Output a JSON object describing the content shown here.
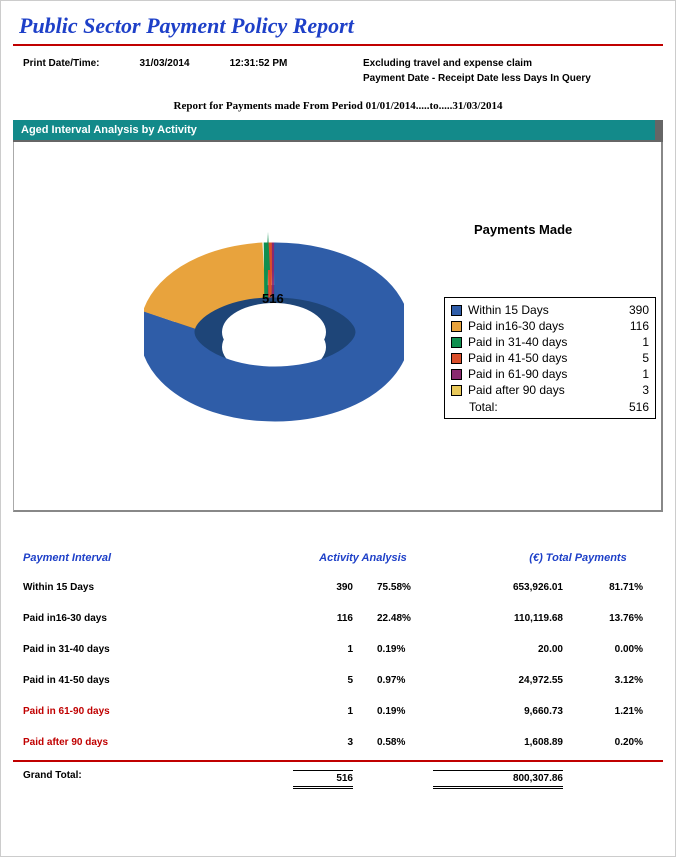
{
  "title": "Public Sector Payment Policy Report",
  "meta": {
    "print_label": "Print Date/Time:",
    "date": "31/03/2014",
    "time": "12:31:52 PM",
    "note1": "Excluding travel and expense claim",
    "note2": "Payment Date - Receipt  Date less Days In Query"
  },
  "range_line": "Report for Payments made From Period 01/01/2014.....to.....31/03/2014",
  "section_title": "Aged Interval Analysis by Activity",
  "chart": {
    "type": "donut-3d",
    "title": "Payments Made",
    "center_value": "516",
    "total_label": "Total:",
    "total_value": "516",
    "background_color": "#ffffff",
    "series": [
      {
        "label": "Within 15 Days",
        "value": 390,
        "color": "#2f5da8"
      },
      {
        "label": "Paid in16-30 days",
        "value": 116,
        "color": "#e8a33d"
      },
      {
        "label": "Paid in 31-40 days",
        "value": 1,
        "color": "#0f8f4f"
      },
      {
        "label": "Paid in 41-50 days",
        "value": 5,
        "color": "#d94e2a"
      },
      {
        "label": "Paid in 61-90 days",
        "value": 1,
        "color": "#8a2a6f"
      },
      {
        "label": "Paid after 90 days",
        "value": 3,
        "color": "#e8c85a"
      }
    ]
  },
  "table": {
    "headers": {
      "interval": "Payment Interval",
      "activity": "Activity Analysis",
      "total_payments": "(€) Total Payments"
    },
    "rows": [
      {
        "interval": "Within 15 Days",
        "count": "390",
        "pct": "75.58%",
        "amount": "653,926.01",
        "apct": "81.71%",
        "red": false
      },
      {
        "interval": "Paid in16-30 days",
        "count": "116",
        "pct": "22.48%",
        "amount": "110,119.68",
        "apct": "13.76%",
        "red": false
      },
      {
        "interval": "Paid in 31-40 days",
        "count": "1",
        "pct": "0.19%",
        "amount": "20.00",
        "apct": "0.00%",
        "red": false
      },
      {
        "interval": "Paid in 41-50 days",
        "count": "5",
        "pct": "0.97%",
        "amount": "24,972.55",
        "apct": "3.12%",
        "red": false
      },
      {
        "interval": "Paid in 61-90 days",
        "count": "1",
        "pct": "0.19%",
        "amount": "9,660.73",
        "apct": "1.21%",
        "red": true
      },
      {
        "interval": "Paid after 90 days",
        "count": "3",
        "pct": "0.58%",
        "amount": "1,608.89",
        "apct": "0.20%",
        "red": true
      }
    ],
    "grand": {
      "label": "Grand Total:",
      "count": "516",
      "amount": "800,307.86"
    }
  },
  "colors": {
    "title_color": "#1e40c8",
    "rule_color": "#c00000",
    "section_bg": "#138a8a",
    "red_text": "#c00000"
  }
}
